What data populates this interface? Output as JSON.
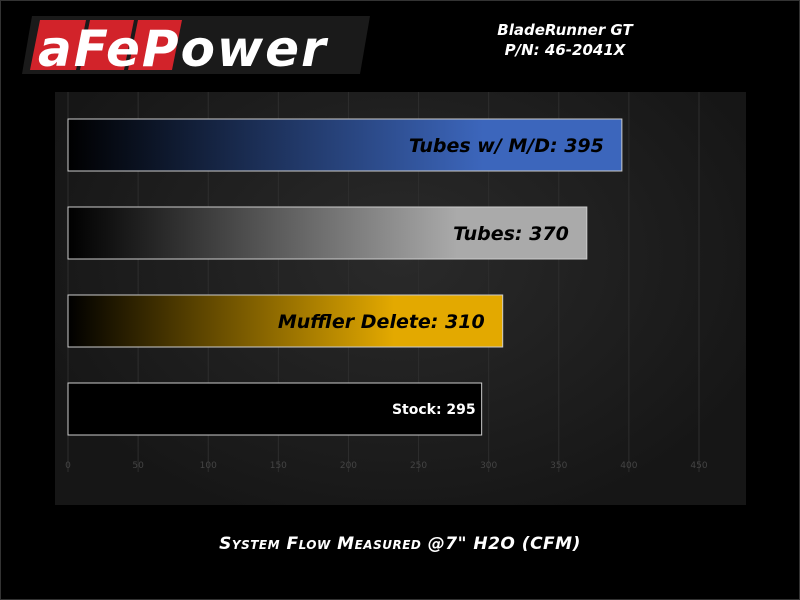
{
  "brand": {
    "logo_text": "aFePower"
  },
  "header": {
    "product": "BladeRunner GT",
    "part_number": "P/N: 46-2041X"
  },
  "chart_data": {
    "type": "bar",
    "orientation": "horizontal",
    "categories": [
      "Tubes w/ M/D",
      "Tubes",
      "Muffler Delete",
      "Stock"
    ],
    "values": [
      395,
      370,
      310,
      295
    ],
    "data_labels": [
      "Tubes w/ M/D: 395",
      "Tubes: 370",
      "Muffler Delete: 310",
      "Stock: 295"
    ],
    "colors": [
      "#3c66bc",
      "#aaaaaa",
      "#e3a900",
      "#000000"
    ],
    "xlabel": "System Flow Measured @7\" H2O (CFM)",
    "xlim": [
      0,
      450
    ],
    "xticks": [
      0,
      50,
      100,
      150,
      200,
      250,
      300,
      350,
      400,
      450
    ],
    "grid": true
  }
}
